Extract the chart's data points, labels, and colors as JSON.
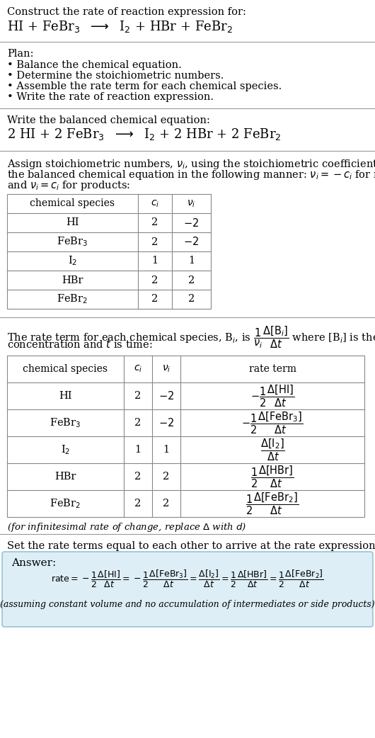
{
  "bg_color": "#ffffff",
  "text_color": "#000000",
  "answer_bg": "#ddeef6",
  "answer_border": "#88bbcc",
  "title_text": "Construct the rate of reaction expression for:",
  "section1_header": "Plan:",
  "section1_items": [
    "• Balance the chemical equation.",
    "• Determine the stoichiometric numbers.",
    "• Assemble the rate term for each chemical species.",
    "• Write the rate of reaction expression."
  ],
  "section2_header": "Write the balanced chemical equation:",
  "section3_lines": [
    "Assign stoichiometric numbers, $\\nu_i$, using the stoichiometric coefficients, $c_i$, from",
    "the balanced chemical equation in the following manner: $\\nu_i = -c_i$ for reactants",
    "and $\\nu_i = c_i$ for products:"
  ],
  "table1_headers": [
    "chemical species",
    "$c_i$",
    "$\\nu_i$"
  ],
  "table1_data": [
    [
      "HI",
      "2",
      "$-2$"
    ],
    [
      "FeBr$_3$",
      "2",
      "$-2$"
    ],
    [
      "I$_2$",
      "1",
      "1"
    ],
    [
      "HBr",
      "2",
      "2"
    ],
    [
      "FeBr$_2$",
      "2",
      "2"
    ]
  ],
  "section4_lines": [
    "The rate term for each chemical species, B$_i$, is $\\dfrac{1}{\\nu_i}\\dfrac{\\Delta[\\mathrm{B}_i]}{\\Delta t}$ where [B$_i$] is the amount",
    "concentration and $t$ is time:"
  ],
  "table2_headers": [
    "chemical species",
    "$c_i$",
    "$\\nu_i$",
    "rate term"
  ],
  "table2_data": [
    [
      "HI",
      "2",
      "$-2$",
      "$-\\dfrac{1}{2}\\dfrac{\\Delta[\\mathrm{HI}]}{\\Delta t}$"
    ],
    [
      "FeBr$_3$",
      "2",
      "$-2$",
      "$-\\dfrac{1}{2}\\dfrac{\\Delta[\\mathrm{FeBr_3}]}{\\Delta t}$"
    ],
    [
      "I$_2$",
      "1",
      "1",
      "$\\dfrac{\\Delta[\\mathrm{I_2}]}{\\Delta t}$"
    ],
    [
      "HBr",
      "2",
      "2",
      "$\\dfrac{1}{2}\\dfrac{\\Delta[\\mathrm{HBr}]}{\\Delta t}$"
    ],
    [
      "FeBr$_2$",
      "2",
      "2",
      "$\\dfrac{1}{2}\\dfrac{\\Delta[\\mathrm{FeBr_2}]}{\\Delta t}$"
    ]
  ],
  "infinitesimal_note": "(for infinitesimal rate of change, replace $\\Delta$ with $d$)",
  "section5_header": "Set the rate terms equal to each other to arrive at the rate expression:",
  "answer_label": "Answer:",
  "answer_note": "(assuming constant volume and no accumulation of intermediates or side products)"
}
